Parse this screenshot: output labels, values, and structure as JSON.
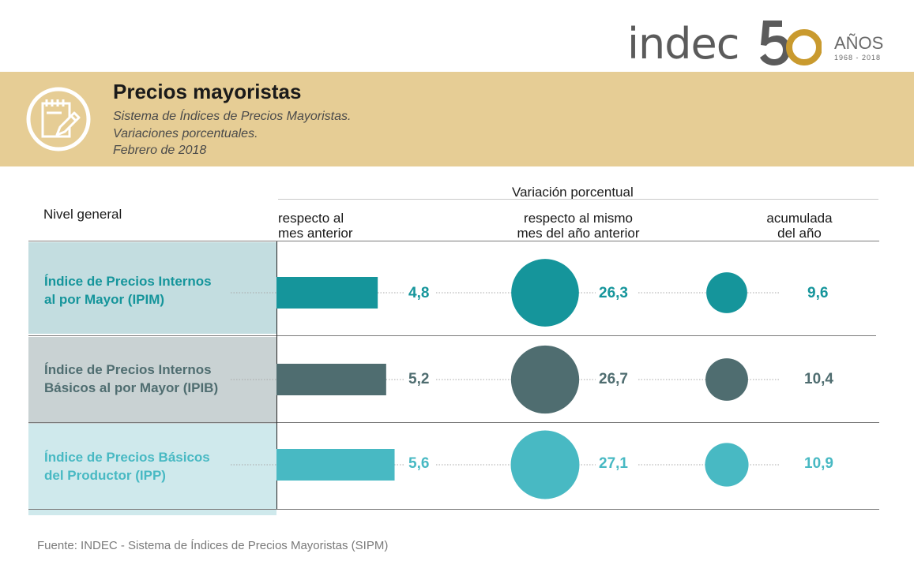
{
  "logo": {
    "wordmark": "indec",
    "number": "50",
    "anos": "AÑOS",
    "years": "1968 - 2018"
  },
  "header": {
    "title": "Precios mayoristas",
    "subtitle_lines": [
      "Sistema de Índices de Precios Mayoristas.",
      "Variaciones porcentuales.",
      "Febrero de 2018"
    ],
    "icon": "notepad-pencil-icon"
  },
  "table": {
    "row_header": "Nivel general",
    "group_header": "Variación porcentual",
    "col1": [
      "respecto al",
      "mes anterior"
    ],
    "col2": [
      "respecto al mismo",
      "mes del año anterior"
    ],
    "col3": [
      "acumulada",
      "del año"
    ]
  },
  "chart_data": {
    "type": "bar",
    "categories": [
      "Índice de Precios Internos al por Mayor (IPIM)",
      "Índice de Precios Internos Básicos al por Mayor (IPIB)",
      "Índice de Precios Básicos del Productor (IPP)"
    ],
    "category_lines": [
      [
        "Índice de Precios Internos",
        "al por Mayor (IPIM)"
      ],
      [
        "Índice de Precios Internos",
        "Básicos al por Mayor (IPIB)"
      ],
      [
        "Índice de Precios Básicos",
        "del Productor (IPP)"
      ]
    ],
    "series": [
      {
        "values": [
          4.8,
          5.2,
          5.6
        ],
        "labels": [
          "4,8",
          "5,2",
          "5,6"
        ]
      },
      {
        "values": [
          26.3,
          26.7,
          27.1
        ],
        "labels": [
          "26,3",
          "26,7",
          "27,1"
        ]
      },
      {
        "values": [
          9.6,
          10.4,
          10.9
        ],
        "labels": [
          "9,6",
          "10,4",
          "10,9"
        ]
      }
    ],
    "colors": [
      "#15959b",
      "#4f6d70",
      "#48b9c3"
    ],
    "label_bg_colors": [
      "#c3dde0",
      "#c9d2d3",
      "#cfe9ec"
    ],
    "title": "",
    "xlabel": "",
    "ylabel": ""
  },
  "footer": {
    "source": "Fuente: INDEC - Sistema de Índices de Precios Mayoristas (SIPM)"
  },
  "colors": {
    "band": "#e6cd95",
    "logo_gold": "#c99a2e",
    "logo_gray": "#5b5b5b"
  }
}
